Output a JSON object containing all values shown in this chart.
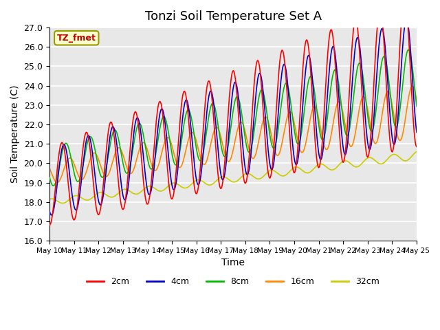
{
  "title": "Tonzi Soil Temperature Set A",
  "xlabel": "Time",
  "ylabel": "Soil Temperature (C)",
  "ylim": [
    16.0,
    27.0
  ],
  "yticks": [
    16.0,
    17.0,
    18.0,
    19.0,
    20.0,
    21.0,
    22.0,
    23.0,
    24.0,
    25.0,
    26.0,
    27.0
  ],
  "legend_label": "TZ_fmet",
  "legend_entries": [
    "2cm",
    "4cm",
    "8cm",
    "16cm",
    "32cm"
  ],
  "colors": {
    "2cm": "#ff0000",
    "4cm": "#0000cc",
    "8cm": "#00bb00",
    "16cm": "#ff8800",
    "32cm": "#cccc00"
  },
  "background_color": "#e8e8e8",
  "xtick_labels": [
    "May 10",
    "May 11",
    "May 12",
    "May 13",
    "May 14",
    "May 15",
    "May 16",
    "May 17",
    "May 18",
    "May 19",
    "May 20",
    "May 21",
    "May 22",
    "May 23",
    "May 24",
    "May 25"
  ]
}
